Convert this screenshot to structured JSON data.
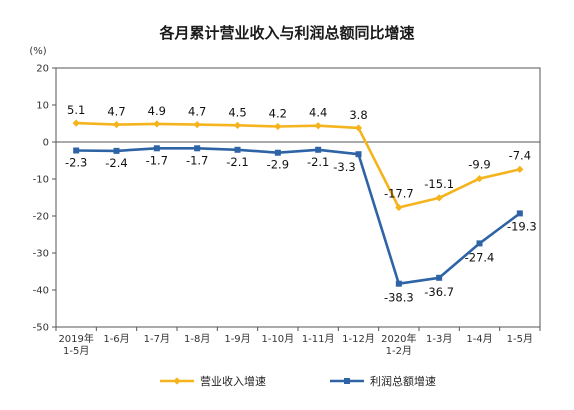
{
  "chart_data": {
    "type": "line",
    "title": "各月累计营业收入与利润总额同比增速",
    "unit_label": "(%)",
    "categories": [
      [
        "2019年",
        "1-5月"
      ],
      [
        "1-6月"
      ],
      [
        "1-7月"
      ],
      [
        "1-8月"
      ],
      [
        "1-9月"
      ],
      [
        "1-10月"
      ],
      [
        "1-11月"
      ],
      [
        "1-12月"
      ],
      [
        "2020年",
        "1-2月"
      ],
      [
        "1-3月"
      ],
      [
        "1-4月"
      ],
      [
        "1-5月"
      ]
    ],
    "ylim": [
      -50,
      20
    ],
    "yticks": [
      20,
      10,
      0,
      -10,
      -20,
      -30,
      -40,
      -50
    ],
    "grid": false,
    "legend_position": "bottom",
    "series": [
      {
        "name": "营业收入增速",
        "color": "#F5B41E",
        "marker": "diamond",
        "values": [
          5.1,
          4.7,
          4.9,
          4.7,
          4.5,
          4.2,
          4.4,
          3.8,
          -17.7,
          -15.1,
          -9.9,
          -7.4
        ],
        "labels": [
          "5.1",
          "4.7",
          "4.9",
          "4.7",
          "4.5",
          "4.2",
          "4.4",
          "3.8",
          "-17.7",
          "-15.1",
          "-9.9",
          "-7.4"
        ]
      },
      {
        "name": "利润总额增速",
        "color": "#2E63A6",
        "marker": "square",
        "values": [
          -2.3,
          -2.4,
          -1.7,
          -1.7,
          -2.1,
          -2.9,
          -2.1,
          -3.3,
          -38.3,
          -36.7,
          -27.4,
          -19.3
        ],
        "labels": [
          "-2.3",
          "-2.4",
          "-1.7",
          "-1.7",
          "-2.1",
          "-2.9",
          "-2.1",
          "-3.3",
          "-38.3",
          "-36.7",
          "-27.4",
          "-19.3"
        ]
      }
    ]
  }
}
